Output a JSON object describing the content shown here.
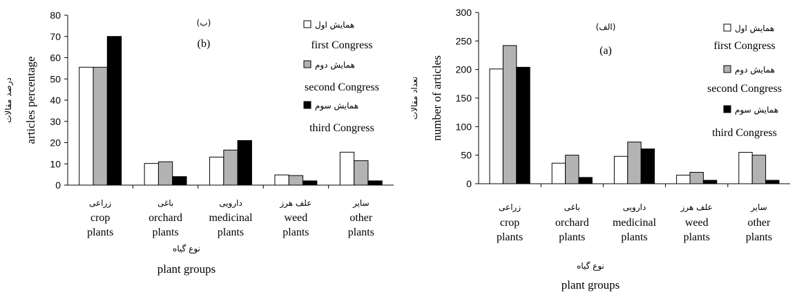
{
  "chart_data": [
    {
      "type": "bar",
      "panel_label_fa": "(ب)",
      "panel_label_en": "(b)",
      "ylabel": "articles percentage",
      "ylabel_fa": "درصد مقالات",
      "xlabel": "plant groups",
      "xlabel_fa": "نوع گیاه",
      "ylim": [
        0,
        80
      ],
      "yticks": [
        0,
        10,
        20,
        30,
        40,
        50,
        60,
        70,
        80
      ],
      "categories_fa": [
        "زراعی",
        "باغی",
        "دارویی",
        "علف هرز",
        "سایر"
      ],
      "categories_en": [
        [
          "crop",
          "plants"
        ],
        [
          "orchard",
          "plants"
        ],
        [
          "medicinal",
          "plants"
        ],
        [
          "weed",
          "plants"
        ],
        [
          "other",
          "plants"
        ]
      ],
      "series": [
        {
          "name": "first Congress",
          "name_fa": "همایش اول",
          "color": "#ffffff",
          "values": [
            55.5,
            10.2,
            13.2,
            4.8,
            15.5
          ]
        },
        {
          "name": "second Congress",
          "name_fa": "همایش دوم",
          "color": "#b3b3b3",
          "values": [
            55.5,
            11.0,
            16.5,
            4.5,
            11.5
          ]
        },
        {
          "name": "third Congress",
          "name_fa": "همایش سوم",
          "color": "#000000",
          "values": [
            70.0,
            4.0,
            21.0,
            2.0,
            2.0
          ]
        }
      ],
      "legend_position": "top-right",
      "grid": false
    },
    {
      "type": "bar",
      "panel_label_fa": "(الف)",
      "panel_label_en": "(a)",
      "ylabel": "number of articles",
      "ylabel_fa": "تعداد مقالات",
      "xlabel": "plant groups",
      "xlabel_fa": "نوع گیاه",
      "ylim": [
        0,
        300
      ],
      "yticks": [
        0,
        50,
        100,
        150,
        200,
        250,
        300
      ],
      "categories_fa": [
        "زراعی",
        "باغی",
        "دارویی",
        "علف هرز",
        "سایر"
      ],
      "categories_en": [
        [
          "crop",
          "plants"
        ],
        [
          "orchard",
          "plants"
        ],
        [
          "medicinal",
          "plants"
        ],
        [
          "weed",
          "plants"
        ],
        [
          "other",
          "plants"
        ]
      ],
      "series": [
        {
          "name": "first Congress",
          "name_fa": "همایش اول",
          "color": "#ffffff",
          "values": [
            201,
            36,
            48,
            15,
            55
          ]
        },
        {
          "name": "second Congress",
          "name_fa": "همایش دوم",
          "color": "#b3b3b3",
          "values": [
            242,
            50,
            73,
            20,
            50
          ]
        },
        {
          "name": "third Congress",
          "name_fa": "همایش سوم",
          "color": "#000000",
          "values": [
            204,
            11,
            61,
            6,
            6
          ]
        }
      ],
      "legend_position": "top-right",
      "grid": false
    }
  ]
}
